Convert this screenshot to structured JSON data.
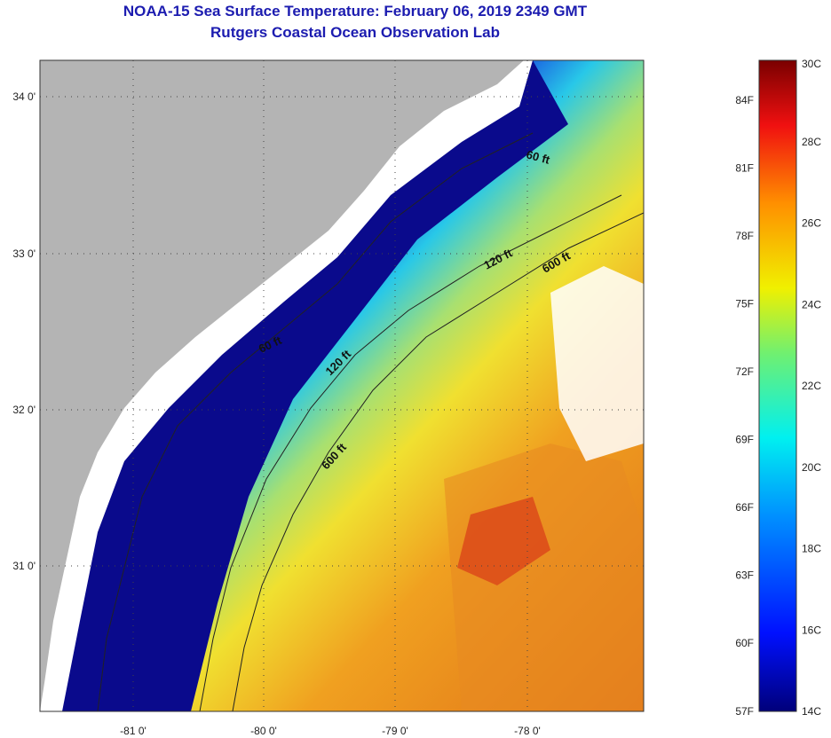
{
  "header": {
    "title": "NOAA-15 Sea Surface Temperature:  February 06, 2019 2349 GMT",
    "subtitle": "Rutgers Coastal Ocean Observation Lab"
  },
  "map": {
    "longitude_labels": [
      "-81 0'",
      "-80 0'",
      "-79 0'",
      "-78 0'"
    ],
    "latitude_labels": [
      "34 0'",
      "33 0'",
      "32 0'",
      "31 0'"
    ],
    "contours": [
      {
        "label": "60 ft"
      },
      {
        "label": "60 ft"
      },
      {
        "label": "120 ft"
      },
      {
        "label": "120 ft"
      },
      {
        "label": "600 ft"
      },
      {
        "label": "600 ft"
      }
    ],
    "colors": {
      "land": "#b4b4b4",
      "cloud": "#ffffff",
      "cold": "#0a0a8c",
      "warm": "#e0701a"
    }
  },
  "colorbar": {
    "celsius_labels": [
      "30C",
      "28C",
      "26C",
      "24C",
      "22C",
      "20C",
      "18C",
      "16C",
      "14C"
    ],
    "fahrenheit_labels": [
      "84F",
      "81F",
      "78F",
      "75F",
      "72F",
      "69F",
      "66F",
      "63F",
      "60F",
      "57F"
    ],
    "range_c": [
      14,
      30
    ]
  }
}
